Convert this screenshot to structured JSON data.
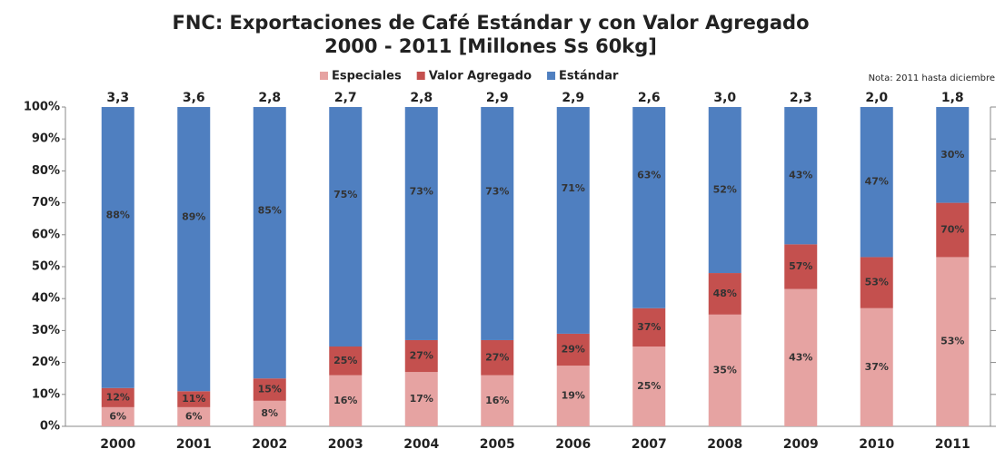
{
  "chart_data": {
    "type": "bar",
    "title": "FNC: Exportaciones de Café Estándar y con Valor Agregado",
    "subtitle": "2000 - 2011 [Millones Ss 60kg]",
    "note": "Nota: 2011 hasta diciembre",
    "stacked": true,
    "categories": [
      "2000",
      "2001",
      "2002",
      "2003",
      "2004",
      "2005",
      "2006",
      "2007",
      "2008",
      "2009",
      "2010",
      "2011"
    ],
    "series": [
      {
        "name": "Especiales",
        "color": "#e6a3a2",
        "values": [
          6,
          6,
          8,
          16,
          17,
          16,
          19,
          25,
          35,
          43,
          37,
          53
        ],
        "value_labels": [
          "6%",
          "6%",
          "8%",
          "16%",
          "17%",
          "16%",
          "19%",
          "25%",
          "35%",
          "43%",
          "37%",
          "53%"
        ]
      },
      {
        "name": "Valor Agregado",
        "color": "#c4504e",
        "values": [
          6,
          5,
          7,
          9,
          10,
          11,
          10,
          12,
          13,
          14,
          16,
          17
        ],
        "annotations": [
          "12%",
          "11%",
          "15%",
          "25%",
          "27%",
          "27%",
          "29%",
          "37%",
          "48%",
          "57%",
          "53%",
          "70%"
        ]
      },
      {
        "name": "Estándar",
        "color": "#4f7fc0",
        "values": [
          88,
          89,
          85,
          75,
          73,
          73,
          71,
          63,
          52,
          43,
          47,
          30
        ],
        "value_labels": [
          "88%",
          "89%",
          "85%",
          "75%",
          "73%",
          "73%",
          "71%",
          "63%",
          "52%",
          "43%",
          "47%",
          "30%"
        ]
      }
    ],
    "totals": {
      "values": [
        3.3,
        3.6,
        2.8,
        2.7,
        2.8,
        2.9,
        2.9,
        2.6,
        3.0,
        2.3,
        2.0,
        1.8
      ],
      "value_labels": [
        "3,3",
        "3,6",
        "2,8",
        "2,7",
        "2,8",
        "2,9",
        "2,9",
        "2,6",
        "3,0",
        "2,3",
        "2,0",
        "1,8"
      ]
    },
    "ylim": [
      0,
      100
    ],
    "yticks": [
      {
        "value": 0,
        "label": "0%"
      },
      {
        "value": 10,
        "label": "10%"
      },
      {
        "value": 20,
        "label": "20%"
      },
      {
        "value": 30,
        "label": "30%"
      },
      {
        "value": 40,
        "label": "40%"
      },
      {
        "value": 50,
        "label": "50%"
      },
      {
        "value": 60,
        "label": "60%"
      },
      {
        "value": 70,
        "label": "70%"
      },
      {
        "value": 80,
        "label": "80%"
      },
      {
        "value": 90,
        "label": "90%"
      },
      {
        "value": 100,
        "label": "100%"
      }
    ]
  }
}
